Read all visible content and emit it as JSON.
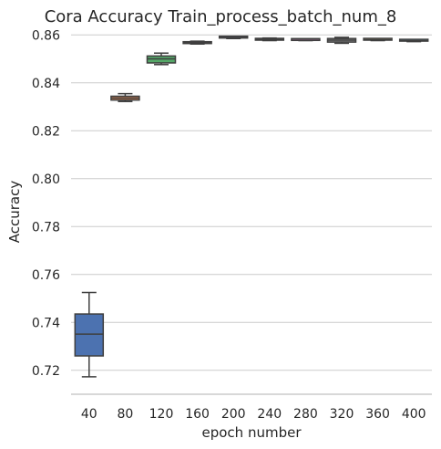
{
  "chart_data": {
    "type": "box",
    "title": "Cora Accuracy Train_process_batch_num_8",
    "xlabel": "epoch number",
    "ylabel": "Accuracy",
    "ylim": [
      0.71,
      0.862
    ],
    "yticks": [
      "0.72",
      "0.74",
      "0.76",
      "0.78",
      "0.80",
      "0.82",
      "0.84",
      "0.86"
    ],
    "grid": "horizontal",
    "categories": [
      "40",
      "80",
      "120",
      "160",
      "200",
      "240",
      "280",
      "320",
      "360",
      "400"
    ],
    "boxes": [
      {
        "category": "40",
        "whislo": 0.7173,
        "q1": 0.726,
        "med": 0.7351,
        "q3": 0.7435,
        "whishi": 0.7525,
        "color": "#4c72b0"
      },
      {
        "category": "80",
        "whislo": 0.8322,
        "q1": 0.8328,
        "med": 0.8336,
        "q3": 0.8344,
        "whishi": 0.8355,
        "color": "#dd8452"
      },
      {
        "category": "120",
        "whislo": 0.8476,
        "q1": 0.8483,
        "med": 0.85,
        "q3": 0.8512,
        "whishi": 0.8524,
        "color": "#55a868"
      },
      {
        "category": "160",
        "whislo": 0.8562,
        "q1": 0.8564,
        "med": 0.8567,
        "q3": 0.8571,
        "whishi": 0.8574,
        "color": "#c44e52"
      },
      {
        "category": "200",
        "whislo": 0.8585,
        "q1": 0.8587,
        "med": 0.8589,
        "q3": 0.8591,
        "whishi": 0.8593,
        "color": "#8172b3"
      },
      {
        "category": "240",
        "whislo": 0.8576,
        "q1": 0.8578,
        "med": 0.8581,
        "q3": 0.8584,
        "whishi": 0.8587,
        "color": "#937860"
      },
      {
        "category": "280",
        "whislo": 0.8576,
        "q1": 0.8577,
        "med": 0.8578,
        "q3": 0.8579,
        "whishi": 0.858,
        "color": "#da8bc3"
      },
      {
        "category": "320",
        "whislo": 0.8565,
        "q1": 0.857,
        "med": 0.8578,
        "q3": 0.8585,
        "whishi": 0.859,
        "color": "#8c8c8c"
      },
      {
        "category": "360",
        "whislo": 0.8576,
        "q1": 0.8578,
        "med": 0.858,
        "q3": 0.8582,
        "whishi": 0.8584,
        "color": "#ccb974"
      },
      {
        "category": "400",
        "whislo": 0.8572,
        "q1": 0.8574,
        "med": 0.8576,
        "q3": 0.8578,
        "whishi": 0.858,
        "color": "#64b5cd"
      }
    ]
  }
}
